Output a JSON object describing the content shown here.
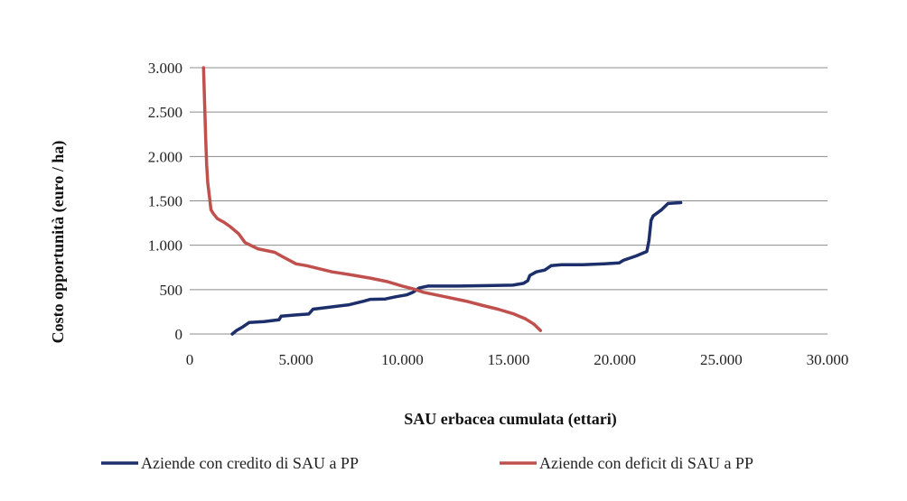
{
  "chart_data": {
    "type": "line",
    "title": "",
    "xlabel": "SAU  erbacea cumulata (ettari)",
    "ylabel": "Costo opportunità (euro / ha)",
    "xlim": [
      0,
      30000
    ],
    "ylim": [
      0,
      3000
    ],
    "x_ticks": [
      0,
      5000,
      10000,
      15000,
      20000,
      25000,
      30000
    ],
    "x_tick_labels": [
      "0",
      "5.000",
      "10.000",
      "15.000",
      "20.000",
      "25.000",
      "30.000"
    ],
    "y_ticks": [
      0,
      500,
      1000,
      1500,
      2000,
      2500,
      3000
    ],
    "y_tick_labels": [
      "0",
      "500",
      "1.000",
      "1.500",
      "2.000",
      "2.500",
      "3.000"
    ],
    "grid": "horizontal",
    "legend_position": "bottom",
    "series": [
      {
        "name": "Aziende con credito di SAU a PP",
        "color": "#1c2f6b",
        "x": [
          2000,
          2200,
          2500,
          2800,
          3500,
          4200,
          4300,
          5000,
          5600,
          5800,
          6500,
          7500,
          8200,
          8500,
          9200,
          9700,
          10200,
          10500,
          10800,
          11000,
          11200,
          12500,
          14000,
          15200,
          15700,
          15900,
          16000,
          16300,
          16700,
          17000,
          17500,
          18500,
          19500,
          20200,
          20400,
          21000,
          21500,
          21600,
          21700,
          21800,
          22200,
          22500,
          23100
        ],
        "y": [
          0,
          40,
          80,
          130,
          140,
          160,
          200,
          215,
          225,
          280,
          300,
          330,
          370,
          390,
          395,
          420,
          440,
          470,
          520,
          530,
          540,
          540,
          545,
          550,
          570,
          600,
          660,
          700,
          720,
          770,
          780,
          780,
          790,
          800,
          830,
          880,
          930,
          1050,
          1280,
          1330,
          1400,
          1470,
          1480
        ]
      },
      {
        "name": "Aziende con deficit di SAU a PP",
        "color": "#c0504d",
        "x": [
          650,
          700,
          750,
          800,
          850,
          950,
          1000,
          1100,
          1300,
          1600,
          1900,
          2300,
          2600,
          3200,
          4000,
          4300,
          5000,
          5500,
          6000,
          6700,
          7500,
          8500,
          9300,
          10000,
          10500,
          11000,
          12000,
          13000,
          13800,
          14500,
          15200,
          15800,
          16200,
          16500
        ],
        "y": [
          3000,
          2600,
          2200,
          1900,
          1700,
          1500,
          1400,
          1360,
          1300,
          1260,
          1210,
          1130,
          1030,
          960,
          920,
          880,
          790,
          770,
          740,
          700,
          670,
          630,
          590,
          540,
          510,
          470,
          420,
          370,
          320,
          280,
          230,
          170,
          110,
          40
        ]
      }
    ]
  }
}
